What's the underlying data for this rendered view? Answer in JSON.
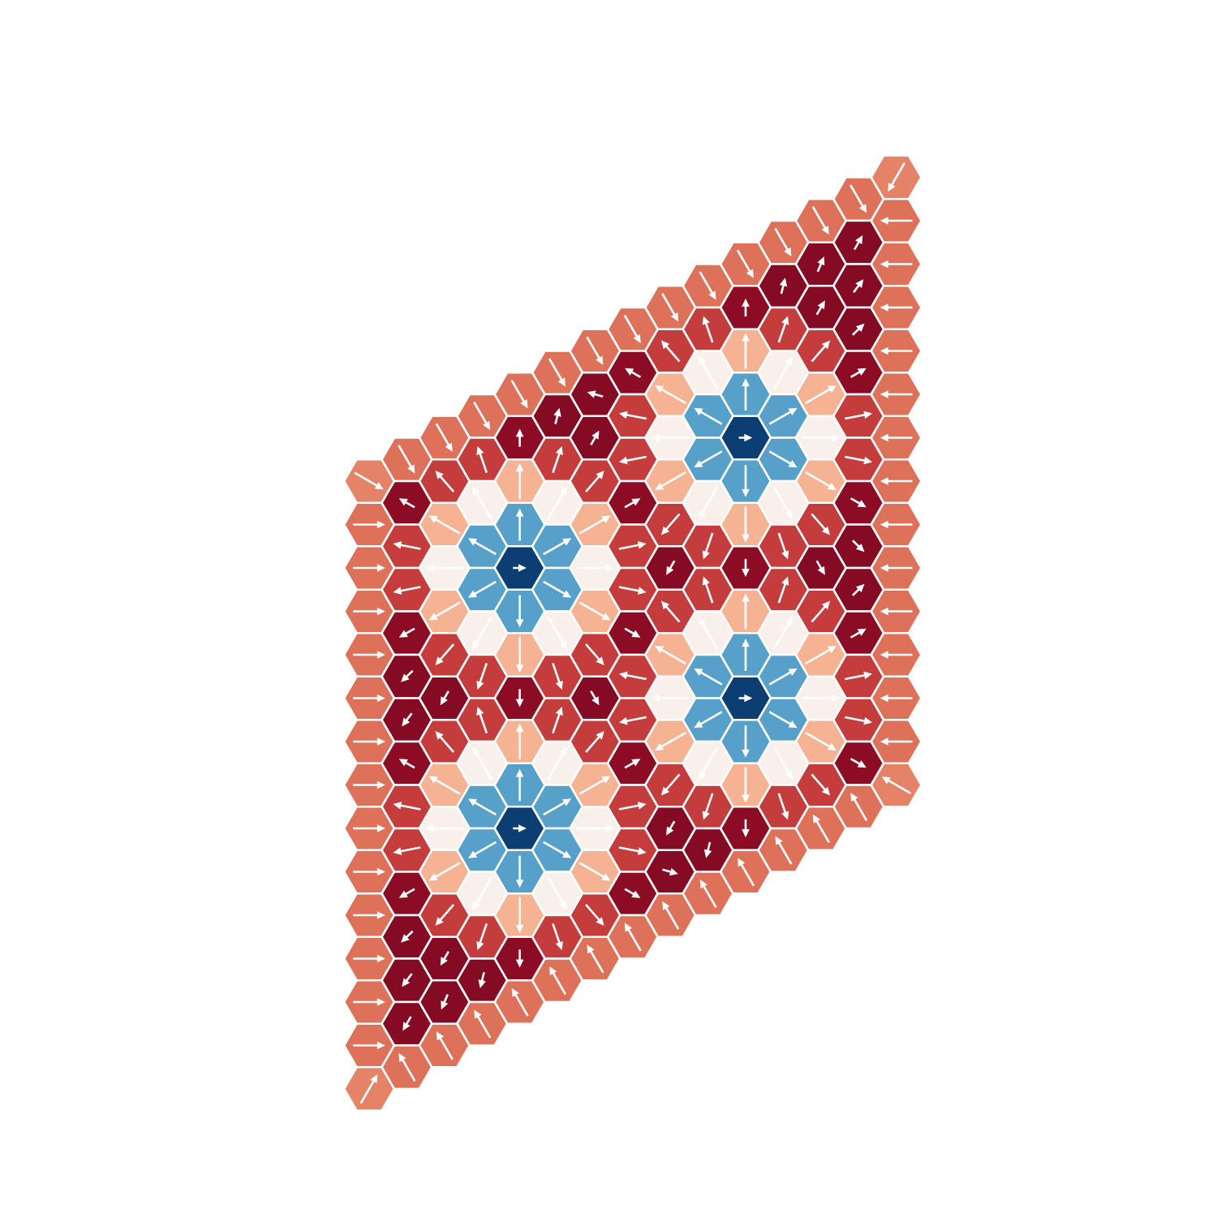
{
  "chart_data": {
    "type": "hex-lattice",
    "clim": [
      -1,
      1
    ],
    "colormap": [
      "#053061",
      "#2166ac",
      "#4393c3",
      "#92c5de",
      "#d1e5f0",
      "#f7f7f7",
      "#fddbc7",
      "#f4a582",
      "#d6604d",
      "#b2182b",
      "#67001f"
    ],
    "arrow_color": "#ffffff",
    "mz": [
      [
        0.5,
        0.55,
        0.55,
        0.55,
        0.55,
        0.55,
        0.55,
        0.55,
        0.55,
        0.55,
        0.55,
        0.55,
        0.55,
        0.55,
        0.5
      ],
      [
        0.55,
        0.9,
        0.7,
        0.7,
        0.9,
        0.92,
        0.92,
        0.9,
        0.7,
        0.7,
        0.9,
        0.92,
        0.92,
        0.92,
        0.55
      ],
      [
        0.55,
        0.7,
        0.35,
        0.05,
        0.35,
        0.7,
        0.92,
        0.7,
        0.35,
        0.05,
        0.35,
        0.7,
        0.92,
        0.92,
        0.55
      ],
      [
        0.55,
        0.7,
        0.05,
        -0.55,
        -0.55,
        0.05,
        0.7,
        0.7,
        0.05,
        -0.55,
        -0.55,
        0.05,
        0.7,
        0.92,
        0.55
      ],
      [
        0.55,
        0.9,
        0.35,
        -0.55,
        -0.95,
        -0.55,
        0.35,
        0.9,
        0.35,
        -0.55,
        -0.95,
        -0.55,
        0.35,
        0.9,
        0.55
      ],
      [
        0.55,
        0.92,
        0.7,
        0.05,
        -0.55,
        -0.55,
        0.05,
        0.7,
        0.7,
        0.05,
        -0.55,
        -0.55,
        0.05,
        0.7,
        0.55
      ],
      [
        0.55,
        0.92,
        0.92,
        0.7,
        0.35,
        0.05,
        0.35,
        0.7,
        0.92,
        0.7,
        0.35,
        0.05,
        0.35,
        0.7,
        0.55
      ],
      [
        0.55,
        0.9,
        0.7,
        0.7,
        0.9,
        0.7,
        0.7,
        0.9,
        0.7,
        0.7,
        0.9,
        0.7,
        0.7,
        0.9,
        0.55
      ],
      [
        0.55,
        0.7,
        0.35,
        0.05,
        0.35,
        0.7,
        0.92,
        0.7,
        0.35,
        0.05,
        0.35,
        0.7,
        0.92,
        0.92,
        0.55
      ],
      [
        0.55,
        0.7,
        0.05,
        -0.55,
        -0.55,
        0.05,
        0.7,
        0.7,
        0.05,
        -0.55,
        -0.55,
        0.05,
        0.7,
        0.92,
        0.55
      ],
      [
        0.55,
        0.9,
        0.35,
        -0.55,
        -0.95,
        -0.55,
        0.35,
        0.9,
        0.35,
        -0.55,
        -0.95,
        -0.55,
        0.35,
        0.9,
        0.55
      ],
      [
        0.55,
        0.92,
        0.7,
        0.05,
        -0.55,
        -0.55,
        0.05,
        0.7,
        0.7,
        0.05,
        -0.55,
        -0.55,
        0.05,
        0.7,
        0.55
      ],
      [
        0.55,
        0.92,
        0.92,
        0.7,
        0.35,
        0.05,
        0.35,
        0.7,
        0.92,
        0.7,
        0.35,
        0.05,
        0.35,
        0.7,
        0.55
      ],
      [
        0.55,
        0.92,
        0.92,
        0.92,
        0.9,
        0.7,
        0.7,
        0.9,
        0.92,
        0.92,
        0.9,
        0.7,
        0.7,
        0.9,
        0.55
      ],
      [
        0.5,
        0.55,
        0.55,
        0.55,
        0.55,
        0.55,
        0.55,
        0.55,
        0.55,
        0.55,
        0.55,
        0.55,
        0.55,
        0.55,
        0.5
      ]
    ],
    "angle": [
      [
        30,
        0,
        0,
        0,
        0,
        0,
        0,
        0,
        0,
        0,
        0,
        0,
        0,
        0,
        -60
      ],
      [
        60,
        -150,
        -169,
        169,
        150,
        136,
        127,
        -150,
        -169,
        169,
        150,
        136,
        127,
        120,
        -120
      ],
      [
        60,
        -131,
        -150,
        180,
        150,
        131,
        120,
        -131,
        -150,
        180,
        150,
        131,
        120,
        113,
        -120
      ],
      [
        60,
        -109,
        -120,
        -150,
        150,
        120,
        109,
        -109,
        -120,
        -150,
        150,
        120,
        109,
        104,
        -120
      ],
      [
        60,
        -90,
        -90,
        -90,
        0,
        90,
        90,
        90,
        -90,
        -90,
        0,
        90,
        90,
        90,
        -120
      ],
      [
        60,
        -76,
        -71,
        -60,
        -30,
        30,
        60,
        71,
        -71,
        -60,
        -30,
        30,
        60,
        71,
        -120
      ],
      [
        60,
        -164,
        -60,
        -49,
        -30,
        0,
        30,
        49,
        60,
        -49,
        -30,
        0,
        30,
        49,
        -120
      ],
      [
        60,
        -150,
        -169,
        169,
        -30,
        -11,
        11,
        30,
        -169,
        169,
        -30,
        -11,
        11,
        30,
        -120
      ],
      [
        60,
        -131,
        -150,
        180,
        150,
        131,
        120,
        -131,
        -150,
        180,
        150,
        131,
        120,
        16,
        -120
      ],
      [
        60,
        -109,
        -120,
        -150,
        150,
        120,
        109,
        -109,
        -120,
        -150,
        150,
        120,
        109,
        104,
        -120
      ],
      [
        60,
        -90,
        -90,
        -90,
        0,
        90,
        90,
        90,
        -90,
        -90,
        0,
        90,
        90,
        90,
        -120
      ],
      [
        60,
        -76,
        -71,
        -60,
        -30,
        30,
        60,
        71,
        -71,
        -60,
        -30,
        30,
        60,
        71,
        -120
      ],
      [
        60,
        -67,
        -60,
        -49,
        -30,
        0,
        30,
        49,
        60,
        -49,
        -30,
        0,
        30,
        49,
        -120
      ],
      [
        60,
        -60,
        -53,
        -44,
        -30,
        -11,
        11,
        30,
        44,
        -44,
        -30,
        -11,
        11,
        30,
        -120
      ],
      [
        120,
        180,
        180,
        180,
        180,
        180,
        180,
        180,
        180,
        180,
        180,
        180,
        180,
        180,
        -150
      ]
    ]
  }
}
